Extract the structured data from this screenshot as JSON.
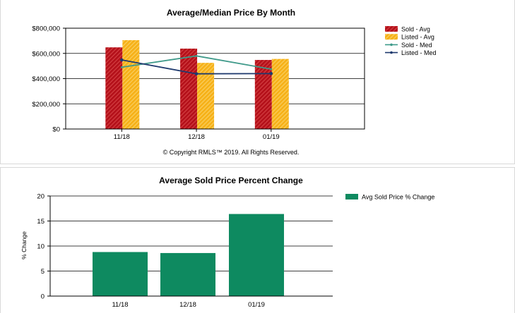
{
  "chart_data": [
    {
      "type": "bar",
      "title": "Average/Median Price By Month",
      "categories": [
        "11/18",
        "12/18",
        "01/19"
      ],
      "ylim": [
        0,
        800000
      ],
      "y_ticks": [
        "$0",
        "$200,000",
        "$400,000",
        "$600,000",
        "$800,000"
      ],
      "grid": true,
      "legend_position": "right",
      "series": [
        {
          "name": "Sold - Avg",
          "kind": "bar",
          "color": "#b5121b",
          "pattern": "hatched",
          "values": [
            648000,
            638000,
            548000
          ]
        },
        {
          "name": "Listed - Avg",
          "kind": "bar",
          "color": "#f6b21a",
          "pattern": "hatched",
          "values": [
            705000,
            525000,
            556000
          ]
        },
        {
          "name": "Sold - Med",
          "kind": "line",
          "color": "#3f9a8a",
          "values": [
            490000,
            580000,
            475000
          ]
        },
        {
          "name": "Listed - Med",
          "kind": "line",
          "color": "#1f3a6e",
          "values": [
            548000,
            438000,
            440000
          ]
        }
      ],
      "footer": "© Copyright RMLS™ 2019.  All Rights Reserved."
    },
    {
      "type": "bar",
      "title": "Average Sold Price Percent Change",
      "categories": [
        "11/18",
        "12/18",
        "01/19"
      ],
      "ylabel": "% Change",
      "ylim": [
        0,
        20
      ],
      "y_ticks": [
        "0",
        "5",
        "10",
        "15",
        "20"
      ],
      "grid": true,
      "legend_position": "right",
      "series": [
        {
          "name": "Avg Sold Price % Change",
          "kind": "bar",
          "color": "#0e8a60",
          "values": [
            8.8,
            8.6,
            16.4
          ]
        }
      ]
    }
  ]
}
